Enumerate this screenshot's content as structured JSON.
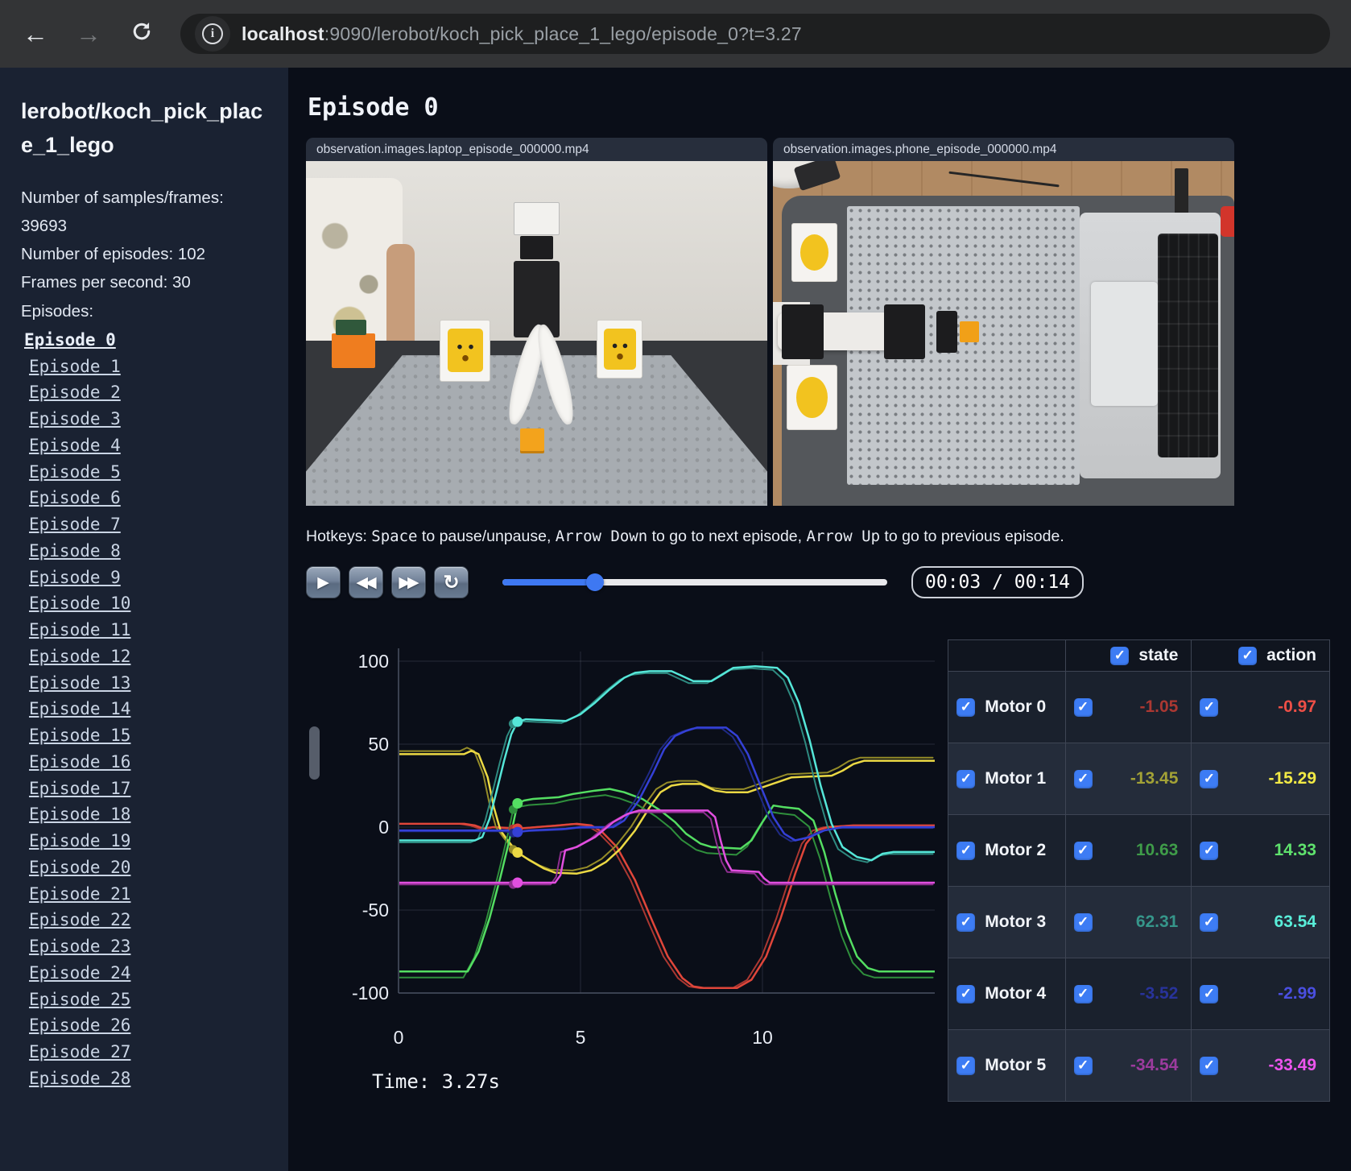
{
  "browser": {
    "url_host": "localhost",
    "url_rest": ":9090/lerobot/koch_pick_place_1_lego/episode_0?t=3.27",
    "back_icon": "←",
    "forward_icon": "→",
    "info_icon": "i"
  },
  "sidebar": {
    "title": "lerobot/koch_pick_place_1_lego",
    "info_line_1": "Number of samples/frames: 39693",
    "info_line_2": "Number of episodes: 102",
    "info_line_3": "Frames per second: 30",
    "episodes_label": "Episodes:",
    "active_episode": "Episode 0",
    "episodes": [
      "Episode 0",
      "Episode 1",
      "Episode 2",
      "Episode 3",
      "Episode 4",
      "Episode 5",
      "Episode 6",
      "Episode 7",
      "Episode 8",
      "Episode 9",
      "Episode 10",
      "Episode 11",
      "Episode 12",
      "Episode 13",
      "Episode 14",
      "Episode 15",
      "Episode 16",
      "Episode 17",
      "Episode 18",
      "Episode 19",
      "Episode 20",
      "Episode 21",
      "Episode 22",
      "Episode 23",
      "Episode 24",
      "Episode 25",
      "Episode 26",
      "Episode 27",
      "Episode 28"
    ]
  },
  "main": {
    "title": "Episode 0",
    "videos": [
      {
        "caption": "observation.images.laptop_episode_000000.mp4"
      },
      {
        "caption": "observation.images.phone_episode_000000.mp4"
      }
    ],
    "hotkeys": {
      "prefix": "Hotkeys: ",
      "key_space": "Space",
      "text1": " to pause/unpause, ",
      "key_down": "Arrow Down",
      "text2": " to go to next episode, ",
      "key_up": "Arrow Up",
      "text3": " to go to previous episode."
    },
    "player": {
      "play_icon": "▶",
      "rewind_icon": "◀◀",
      "forward_icon": "▶▶",
      "loop_icon": "↻",
      "progress_pct": 24,
      "time_display": "00:03 / 00:14"
    }
  },
  "motor_table": {
    "state_header": "state",
    "action_header": "action",
    "rows": [
      {
        "label": "Motor 0",
        "state": "-1.05",
        "action": "-0.97",
        "state_color": "#ab3832",
        "action_color": "#ee4f47"
      },
      {
        "label": "Motor 1",
        "state": "-13.45",
        "action": "-15.29",
        "state_color": "#a3a236",
        "action_color": "#f2ea45"
      },
      {
        "label": "Motor 2",
        "state": "10.63",
        "action": "14.33",
        "state_color": "#3f9c49",
        "action_color": "#5fe26d"
      },
      {
        "label": "Motor 3",
        "state": "62.31",
        "action": "63.54",
        "state_color": "#36968a",
        "action_color": "#59eed9"
      },
      {
        "label": "Motor 4",
        "state": "-3.52",
        "action": "-2.99",
        "state_color": "#28339b",
        "action_color": "#4a4fe0"
      },
      {
        "label": "Motor 5",
        "state": "-34.54",
        "action": "-33.49",
        "state_color": "#9c3b9e",
        "action_color": "#ee55ee"
      }
    ]
  },
  "chart_data": {
    "type": "line",
    "title": "",
    "xlabel": "",
    "ylabel": "",
    "x_ticks": [
      0,
      5,
      10
    ],
    "y_ticks": [
      100,
      50,
      0,
      -50,
      -100
    ],
    "xlim": [
      0,
      14.8
    ],
    "ylim": [
      -115,
      115
    ],
    "grid": true,
    "current_time": 3.27,
    "time_label": "Time: 3.27s",
    "series": [
      {
        "name": "Motor 0",
        "state_color": "#ab3832",
        "action_color": "#e0463a",
        "state_value": -1.05,
        "action_value": -0.97,
        "points": [
          [
            0,
            2
          ],
          [
            1.8,
            2
          ],
          [
            2.1,
            1
          ],
          [
            2.35,
            -1
          ],
          [
            2.6,
            0
          ],
          [
            3.0,
            -0.5
          ],
          [
            3.27,
            -0.97
          ],
          [
            3.8,
            0
          ],
          [
            4.4,
            1
          ],
          [
            4.9,
            2
          ],
          [
            5.3,
            1
          ],
          [
            5.6,
            -3
          ],
          [
            6.0,
            -12
          ],
          [
            6.5,
            -32
          ],
          [
            7.0,
            -58
          ],
          [
            7.4,
            -78
          ],
          [
            7.8,
            -91
          ],
          [
            8.1,
            -96
          ],
          [
            8.4,
            -97
          ],
          [
            9.3,
            -97
          ],
          [
            9.7,
            -92
          ],
          [
            10.1,
            -78
          ],
          [
            10.5,
            -55
          ],
          [
            10.9,
            -28
          ],
          [
            11.2,
            -10
          ],
          [
            11.5,
            -2
          ],
          [
            11.8,
            0
          ],
          [
            12.5,
            1
          ],
          [
            14.8,
            1
          ]
        ]
      },
      {
        "name": "Motor 1",
        "state_color": "#958c28",
        "action_color": "#ecd944",
        "state_value": -13.45,
        "action_value": -15.29,
        "points": [
          [
            0,
            44
          ],
          [
            1.8,
            44
          ],
          [
            2.0,
            46
          ],
          [
            2.2,
            44
          ],
          [
            2.45,
            30
          ],
          [
            2.62,
            12
          ],
          [
            2.8,
            -2
          ],
          [
            3.0,
            -8
          ],
          [
            3.27,
            -15.29
          ],
          [
            3.6,
            -20
          ],
          [
            4.0,
            -25
          ],
          [
            4.3,
            -27.5
          ],
          [
            4.9,
            -28
          ],
          [
            5.3,
            -26
          ],
          [
            5.7,
            -21
          ],
          [
            6.1,
            -13
          ],
          [
            6.5,
            -2
          ],
          [
            6.9,
            12
          ],
          [
            7.2,
            21
          ],
          [
            7.5,
            25
          ],
          [
            7.8,
            26
          ],
          [
            8.3,
            26
          ],
          [
            8.7,
            22
          ],
          [
            9.0,
            21
          ],
          [
            9.6,
            21
          ],
          [
            10.0,
            24
          ],
          [
            10.4,
            27
          ],
          [
            10.8,
            30
          ],
          [
            11.9,
            31
          ],
          [
            12.2,
            34
          ],
          [
            12.5,
            38
          ],
          [
            12.8,
            40
          ],
          [
            14.8,
            40
          ]
        ]
      },
      {
        "name": "Motor 2",
        "state_color": "#2f8f3c",
        "action_color": "#54de62",
        "state_value": 10.63,
        "action_value": 14.33,
        "points": [
          [
            0,
            -87
          ],
          [
            1.9,
            -87
          ],
          [
            2.2,
            -75
          ],
          [
            2.5,
            -55
          ],
          [
            2.8,
            -30
          ],
          [
            3.0,
            -12
          ],
          [
            3.15,
            2
          ],
          [
            3.27,
            14.33
          ],
          [
            3.45,
            16
          ],
          [
            3.7,
            17
          ],
          [
            4.4,
            18
          ],
          [
            4.8,
            20
          ],
          [
            5.4,
            22
          ],
          [
            5.8,
            23
          ],
          [
            6.2,
            21
          ],
          [
            6.7,
            17
          ],
          [
            7.2,
            10
          ],
          [
            7.6,
            3
          ],
          [
            7.9,
            -4
          ],
          [
            8.3,
            -10
          ],
          [
            8.6,
            -12
          ],
          [
            9.4,
            -13
          ],
          [
            9.7,
            -8
          ],
          [
            10.0,
            3
          ],
          [
            10.3,
            13
          ],
          [
            10.6,
            12
          ],
          [
            11.0,
            11
          ],
          [
            11.4,
            4
          ],
          [
            11.7,
            -15
          ],
          [
            12.0,
            -40
          ],
          [
            12.3,
            -62
          ],
          [
            12.6,
            -78
          ],
          [
            12.9,
            -85
          ],
          [
            13.2,
            -87
          ],
          [
            14.8,
            -87
          ]
        ]
      },
      {
        "name": "Motor 3",
        "state_color": "#2e8a80",
        "action_color": "#55e6d8",
        "state_value": 62.31,
        "action_value": 63.54,
        "points": [
          [
            0,
            -8
          ],
          [
            2.1,
            -8
          ],
          [
            2.3,
            -6
          ],
          [
            2.5,
            5
          ],
          [
            2.7,
            22
          ],
          [
            2.9,
            40
          ],
          [
            3.1,
            56
          ],
          [
            3.27,
            63.54
          ],
          [
            3.5,
            65
          ],
          [
            4.6,
            64
          ],
          [
            5.0,
            68
          ],
          [
            5.4,
            75
          ],
          [
            5.8,
            83
          ],
          [
            6.2,
            90
          ],
          [
            6.5,
            93
          ],
          [
            6.9,
            94
          ],
          [
            7.5,
            94
          ],
          [
            7.8,
            91
          ],
          [
            8.1,
            88
          ],
          [
            8.6,
            88
          ],
          [
            8.9,
            92
          ],
          [
            9.2,
            96
          ],
          [
            9.8,
            97
          ],
          [
            10.4,
            96
          ],
          [
            10.7,
            90
          ],
          [
            11.0,
            75
          ],
          [
            11.3,
            52
          ],
          [
            11.6,
            25
          ],
          [
            11.9,
            2
          ],
          [
            12.2,
            -12
          ],
          [
            12.6,
            -18
          ],
          [
            13.0,
            -20
          ],
          [
            13.3,
            -16
          ],
          [
            13.6,
            -15
          ],
          [
            14.8,
            -15
          ]
        ]
      },
      {
        "name": "Motor 4",
        "state_color": "#1f2a85",
        "action_color": "#3440d6",
        "state_value": -3.52,
        "action_value": -2.99,
        "points": [
          [
            0,
            -2
          ],
          [
            3.0,
            -2
          ],
          [
            3.27,
            -2.99
          ],
          [
            3.6,
            -2
          ],
          [
            4.6,
            -1
          ],
          [
            5.0,
            0
          ],
          [
            5.9,
            0
          ],
          [
            6.2,
            4
          ],
          [
            6.6,
            16
          ],
          [
            7.0,
            33
          ],
          [
            7.3,
            47
          ],
          [
            7.6,
            55
          ],
          [
            7.9,
            58
          ],
          [
            8.2,
            60
          ],
          [
            9.0,
            60
          ],
          [
            9.3,
            55
          ],
          [
            9.6,
            44
          ],
          [
            10.0,
            22
          ],
          [
            10.3,
            6
          ],
          [
            10.6,
            -4
          ],
          [
            10.9,
            -8
          ],
          [
            11.3,
            -6
          ],
          [
            11.7,
            -2
          ],
          [
            12.2,
            0
          ],
          [
            14.8,
            0
          ]
        ]
      },
      {
        "name": "Motor 5",
        "state_color": "#8f2e90",
        "action_color": "#e24fe0",
        "state_value": -34.54,
        "action_value": -33.49,
        "points": [
          [
            0,
            -33.5
          ],
          [
            4.3,
            -33.5
          ],
          [
            4.45,
            -29
          ],
          [
            4.58,
            -14
          ],
          [
            4.9,
            -12
          ],
          [
            5.4,
            -6
          ],
          [
            5.9,
            3
          ],
          [
            6.3,
            8
          ],
          [
            6.6,
            10
          ],
          [
            8.5,
            10
          ],
          [
            8.7,
            6
          ],
          [
            8.85,
            -8
          ],
          [
            9.0,
            -20
          ],
          [
            9.15,
            -26
          ],
          [
            9.9,
            -27
          ],
          [
            10.05,
            -31
          ],
          [
            10.2,
            -33.5
          ],
          [
            14.8,
            -33.5
          ]
        ]
      }
    ]
  }
}
